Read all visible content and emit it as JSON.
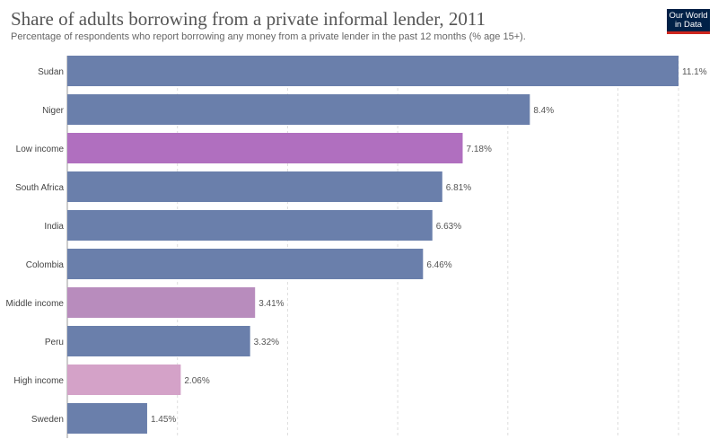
{
  "header": {
    "title": "Share of adults borrowing from a private informal lender, 2011",
    "subtitle": "Percentage of respondents who report borrowing any money from a private lender in the past 12 months (% age 15+).",
    "logo_line1": "Our World",
    "logo_line2": "in Data"
  },
  "chart_data": {
    "type": "bar",
    "orientation": "horizontal",
    "title": "Share of adults borrowing from a private informal lender, 2011",
    "subtitle": "Percentage of respondents who report borrowing any money from a private lender in the past 12 months (% age 15+).",
    "categories": [
      "Sudan",
      "Niger",
      "Low income",
      "South Africa",
      "India",
      "Colombia",
      "Middle income",
      "Peru",
      "High income",
      "Sweden"
    ],
    "values": [
      11.1,
      8.4,
      7.18,
      6.81,
      6.63,
      6.46,
      3.41,
      3.32,
      2.06,
      1.45
    ],
    "value_labels": [
      "11.1%",
      "8.4%",
      "7.18%",
      "6.81%",
      "6.63%",
      "6.46%",
      "3.41%",
      "3.32%",
      "2.06%",
      "1.45%"
    ],
    "colors": [
      "#6a7fab",
      "#6a7fab",
      "#b06fbf",
      "#6a7fab",
      "#6a7fab",
      "#6a7fab",
      "#b88cbd",
      "#6a7fab",
      "#d4a2c8",
      "#6a7fab"
    ],
    "xlim": [
      0,
      11.1
    ],
    "grid": true,
    "xlabel": "",
    "ylabel": ""
  }
}
